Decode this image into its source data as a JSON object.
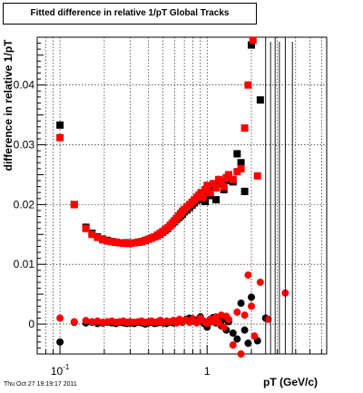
{
  "title": "Fitted difference in relative 1/pT  Global Tracks",
  "timestamp": "Thu Oct 27 19:19:17 2011",
  "chart_data": {
    "type": "scatter",
    "title": "Fitted difference in relative 1/pT  Global Tracks",
    "xlabel": "pT (GeV/c)",
    "ylabel": "difference in relative 1/pT",
    "x_scale": "log",
    "xlim": [
      0.07,
      6.5
    ],
    "ylim": [
      -0.005,
      0.048
    ],
    "grid": true,
    "y_ticks": [
      0,
      0.01,
      0.02,
      0.03,
      0.04
    ],
    "y_tick_labels": [
      "0",
      "0.01",
      "0.02",
      "0.03",
      "0.04"
    ],
    "x_tick_labels": [
      {
        "base": "10",
        "exp": "-1",
        "value": 0.1
      },
      {
        "base": "1",
        "exp": "",
        "value": 1
      }
    ],
    "series": [
      {
        "marker": "square",
        "color": "#000000",
        "x": [
          0.1,
          0.125,
          0.15,
          0.165,
          0.18,
          0.195,
          0.21,
          0.225,
          0.24,
          0.255,
          0.27,
          0.285,
          0.3,
          0.32,
          0.34,
          0.36,
          0.38,
          0.4,
          0.42,
          0.44,
          0.46,
          0.48,
          0.5,
          0.52,
          0.54,
          0.56,
          0.58,
          0.6,
          0.62,
          0.64,
          0.66,
          0.68,
          0.7,
          0.73,
          0.76,
          0.79,
          0.82,
          0.85,
          0.88,
          0.91,
          0.94,
          0.97,
          1.0,
          1.05,
          1.1,
          1.15,
          1.2,
          1.25,
          1.3,
          1.35,
          1.4,
          1.5,
          1.6,
          1.7,
          1.8,
          2.0,
          2.3
        ],
        "y": [
          0.0333,
          0.02,
          0.0162,
          0.0152,
          0.0146,
          0.0142,
          0.014,
          0.0138,
          0.0137,
          0.0136,
          0.0136,
          0.0136,
          0.0135,
          0.0136,
          0.0137,
          0.0138,
          0.014,
          0.0142,
          0.0144,
          0.0146,
          0.0148,
          0.0151,
          0.0154,
          0.0157,
          0.016,
          0.0164,
          0.0168,
          0.0171,
          0.0175,
          0.0178,
          0.0181,
          0.0184,
          0.0188,
          0.0191,
          0.0195,
          0.0199,
          0.0203,
          0.0207,
          0.0212,
          0.0216,
          0.0208,
          0.0205,
          0.022,
          0.0215,
          0.023,
          0.0208,
          0.0238,
          0.0235,
          0.0225,
          0.024,
          0.0248,
          0.0238,
          0.0285,
          0.027,
          0.0222,
          0.0467,
          0.0375
        ]
      },
      {
        "marker": "square",
        "color": "#ff0000",
        "x": [
          0.1,
          0.125,
          0.15,
          0.165,
          0.18,
          0.195,
          0.21,
          0.225,
          0.24,
          0.255,
          0.27,
          0.285,
          0.3,
          0.32,
          0.34,
          0.36,
          0.38,
          0.4,
          0.42,
          0.44,
          0.46,
          0.48,
          0.5,
          0.52,
          0.54,
          0.56,
          0.58,
          0.6,
          0.62,
          0.64,
          0.66,
          0.68,
          0.7,
          0.73,
          0.76,
          0.79,
          0.82,
          0.85,
          0.88,
          0.91,
          0.94,
          0.97,
          1.0,
          1.05,
          1.1,
          1.15,
          1.2,
          1.25,
          1.3,
          1.35,
          1.4,
          1.5,
          1.6,
          1.7,
          1.8,
          1.9,
          2.05,
          2.2
        ],
        "y": [
          0.0312,
          0.02,
          0.016,
          0.015,
          0.0145,
          0.0141,
          0.0139,
          0.0138,
          0.0137,
          0.0136,
          0.0135,
          0.0135,
          0.0135,
          0.0136,
          0.0137,
          0.0138,
          0.014,
          0.0142,
          0.0144,
          0.0146,
          0.0149,
          0.0152,
          0.0155,
          0.0158,
          0.0161,
          0.0165,
          0.0169,
          0.0173,
          0.0177,
          0.0181,
          0.0185,
          0.0189,
          0.0192,
          0.0196,
          0.02,
          0.0204,
          0.0208,
          0.0212,
          0.0216,
          0.022,
          0.0212,
          0.0225,
          0.0232,
          0.022,
          0.0235,
          0.0228,
          0.0242,
          0.0238,
          0.023,
          0.0245,
          0.025,
          0.0242,
          0.0255,
          0.026,
          0.0328,
          0.04,
          0.0475,
          0.0248
        ]
      },
      {
        "marker": "circle",
        "color": "#000000",
        "x": [
          0.1,
          0.125,
          0.15,
          0.165,
          0.18,
          0.195,
          0.21,
          0.225,
          0.24,
          0.255,
          0.27,
          0.285,
          0.3,
          0.32,
          0.34,
          0.36,
          0.38,
          0.4,
          0.42,
          0.44,
          0.46,
          0.48,
          0.5,
          0.53,
          0.56,
          0.59,
          0.62,
          0.65,
          0.68,
          0.72,
          0.76,
          0.8,
          0.85,
          0.9,
          0.95,
          1.0,
          1.05,
          1.1,
          1.15,
          1.2,
          1.25,
          1.3,
          1.35,
          1.4,
          1.5,
          1.6,
          1.7,
          1.8,
          1.9,
          2.0,
          2.2,
          2.5
        ],
        "y": [
          -0.003,
          0.0003,
          0.0002,
          0.0003,
          0.0001,
          0.0002,
          0.0003,
          0.0002,
          0.0001,
          0.0003,
          0.0002,
          0.0001,
          0.0002,
          0.0001,
          0.0003,
          0.0002,
          0.0,
          0.0002,
          0.0003,
          0.0001,
          0.0002,
          0.0004,
          0.0002,
          0.0001,
          0.0003,
          0.0002,
          0.0005,
          0.0006,
          0.0003,
          0.0008,
          0.001,
          0.0005,
          0.0007,
          0.0012,
          0.0001,
          -0.0005,
          0.0004,
          0.0011,
          0.0002,
          0.0009,
          -0.0003,
          0.0008,
          -0.001,
          0.0004,
          -0.0015,
          -0.0025,
          0.0035,
          -0.001,
          -0.0032,
          0.0045,
          -0.0028,
          0.001
        ]
      },
      {
        "marker": "circle",
        "color": "#ff0000",
        "x": [
          0.1,
          0.125,
          0.15,
          0.165,
          0.18,
          0.195,
          0.21,
          0.225,
          0.24,
          0.255,
          0.27,
          0.285,
          0.3,
          0.32,
          0.34,
          0.36,
          0.38,
          0.4,
          0.42,
          0.44,
          0.46,
          0.48,
          0.5,
          0.53,
          0.56,
          0.59,
          0.62,
          0.65,
          0.68,
          0.72,
          0.76,
          0.8,
          0.85,
          0.9,
          0.95,
          1.0,
          1.05,
          1.1,
          1.15,
          1.2,
          1.25,
          1.3,
          1.35,
          1.4,
          1.5,
          1.6,
          1.7,
          1.8,
          1.9,
          2.0,
          2.1,
          2.3,
          2.6,
          3.4
        ],
        "y": [
          0.001,
          0.0004,
          0.0006,
          0.0004,
          0.0005,
          0.0003,
          0.0004,
          0.0005,
          0.0003,
          0.0004,
          0.0005,
          0.0003,
          0.0004,
          0.0003,
          0.0004,
          0.0005,
          0.0003,
          0.0004,
          0.0005,
          0.0003,
          0.0004,
          0.0006,
          0.0003,
          0.0005,
          0.0004,
          0.0006,
          0.0002,
          0.0008,
          0.0004,
          0.0007,
          0.0003,
          0.0009,
          0.0002,
          0.001,
          0.0005,
          0.0001,
          0.0008,
          0.0004,
          0.0012,
          0.0002,
          0.0015,
          -0.0005,
          0.0013,
          0.0008,
          -0.0035,
          0.002,
          -0.005,
          0.0015,
          0.0082,
          0.003,
          -0.002,
          0.007,
          0.0008,
          0.0052
        ]
      }
    ]
  }
}
